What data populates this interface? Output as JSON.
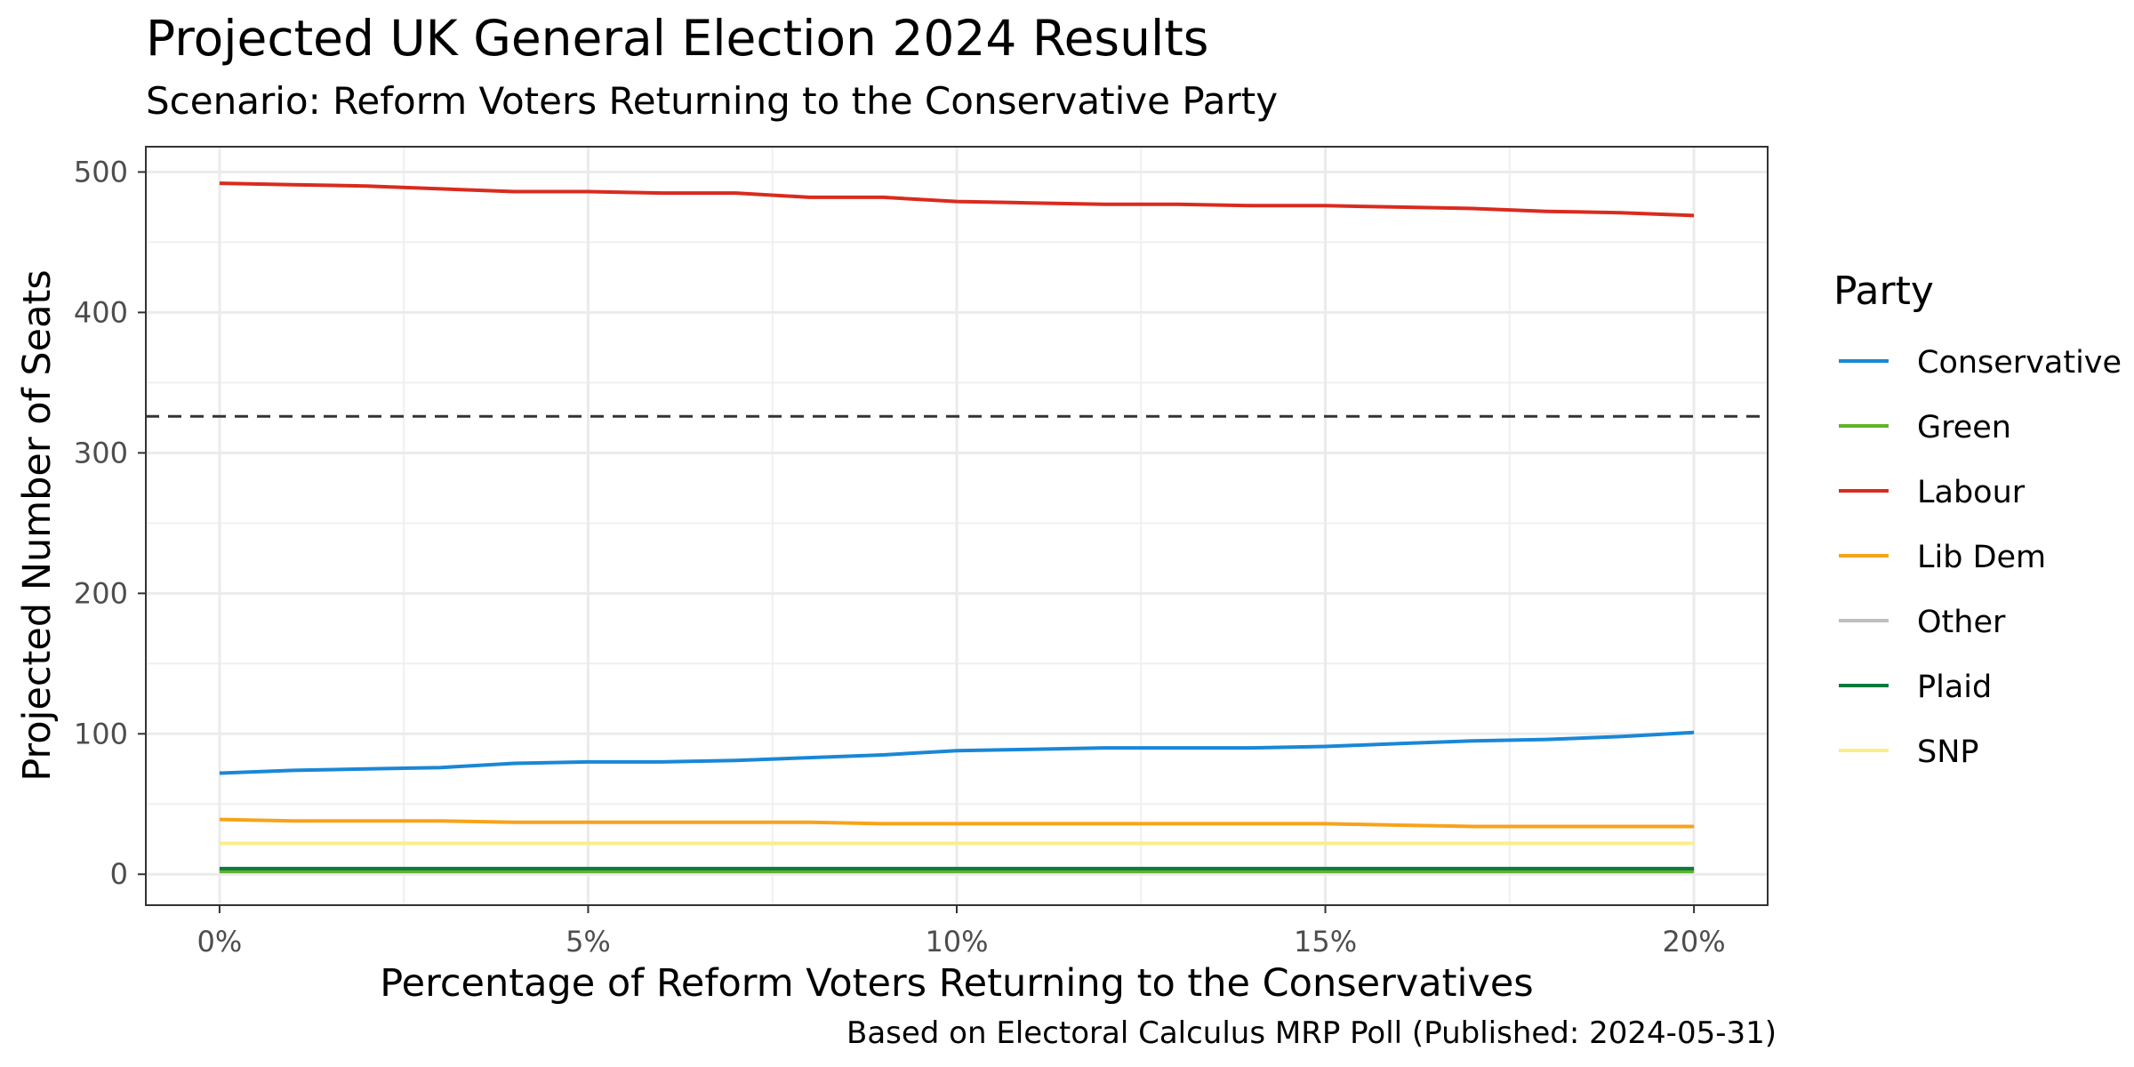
{
  "title": "Projected UK General Election 2024 Results",
  "subtitle": "Scenario: Reform Voters Returning to the Conservative Party",
  "caption": "Based on Electoral Calculus MRP Poll (Published: 2024-05-31)",
  "chart_data": {
    "type": "line",
    "title": "Projected UK General Election 2024 Results",
    "subtitle": "Scenario: Reform Voters Returning to the Conservative Party",
    "xlabel": "Percentage of Reform Voters Returning to the Conservatives",
    "ylabel": "Projected Number of Seats",
    "xlim": [
      -1,
      21
    ],
    "ylim": [
      -22,
      518
    ],
    "x_ticks": [
      0,
      5,
      10,
      15,
      20
    ],
    "x_tick_labels": [
      "0%",
      "5%",
      "10%",
      "15%",
      "20%"
    ],
    "y_ticks": [
      0,
      100,
      200,
      300,
      400,
      500
    ],
    "y_tick_labels": [
      "0",
      "100",
      "200",
      "300",
      "400",
      "500"
    ],
    "grid": true,
    "reference_line": {
      "y": 326,
      "style": "dashed"
    },
    "legend": {
      "title": "Party",
      "position": "right"
    },
    "x": [
      0,
      1,
      2,
      3,
      4,
      5,
      6,
      7,
      8,
      9,
      10,
      11,
      12,
      13,
      14,
      15,
      16,
      17,
      18,
      19,
      20
    ],
    "series": [
      {
        "name": "Conservative",
        "color": "#1a87d6",
        "values": [
          72,
          74,
          75,
          76,
          79,
          80,
          80,
          81,
          83,
          85,
          88,
          89,
          90,
          90,
          90,
          91,
          93,
          95,
          96,
          98,
          101
        ]
      },
      {
        "name": "Green",
        "color": "#62b32a",
        "values": [
          2,
          2,
          2,
          2,
          2,
          2,
          2,
          2,
          2,
          2,
          2,
          2,
          2,
          2,
          2,
          2,
          2,
          2,
          2,
          2,
          2
        ]
      },
      {
        "name": "Labour",
        "color": "#d92b1f",
        "values": [
          492,
          491,
          490,
          488,
          486,
          486,
          485,
          485,
          482,
          482,
          479,
          478,
          477,
          477,
          476,
          476,
          475,
          474,
          472,
          471,
          469
        ]
      },
      {
        "name": "Lib Dem",
        "color": "#f7a31a",
        "values": [
          39,
          38,
          38,
          38,
          37,
          37,
          37,
          37,
          37,
          36,
          36,
          36,
          36,
          36,
          36,
          36,
          35,
          34,
          34,
          34,
          34
        ]
      },
      {
        "name": "Other",
        "color": "#bfbfbf",
        "values": [
          3,
          3,
          3,
          3,
          3,
          3,
          3,
          3,
          3,
          3,
          3,
          3,
          3,
          3,
          3,
          3,
          3,
          3,
          3,
          3,
          3
        ]
      },
      {
        "name": "Plaid",
        "color": "#0b7a3e",
        "values": [
          4,
          4,
          4,
          4,
          4,
          4,
          4,
          4,
          4,
          4,
          4,
          4,
          4,
          4,
          4,
          4,
          4,
          4,
          4,
          4,
          4
        ]
      },
      {
        "name": "SNP",
        "color": "#fbee86",
        "values": [
          22,
          22,
          22,
          22,
          22,
          22,
          22,
          22,
          22,
          22,
          22,
          22,
          22,
          22,
          22,
          22,
          22,
          22,
          22,
          22,
          22
        ]
      }
    ]
  }
}
